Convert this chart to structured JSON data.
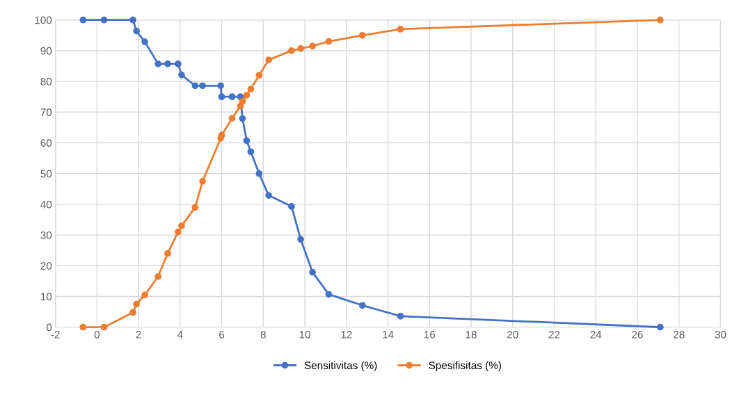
{
  "chart_data": {
    "type": "line",
    "x": [
      -0.67,
      0.34,
      1.73,
      1.9,
      2.3,
      2.94,
      3.4,
      3.9,
      4.07,
      4.72,
      5.08,
      5.95,
      6.0,
      6.5,
      6.9,
      7.0,
      7.2,
      7.4,
      7.8,
      8.26,
      9.36,
      9.8,
      10.37,
      11.15,
      12.77,
      14.6,
      27.1
    ],
    "series": [
      {
        "name": "Sensitivitas (%)",
        "color": "#4472c4",
        "values": [
          100,
          100,
          100,
          96.4,
          92.9,
          85.7,
          85.7,
          85.7,
          82.1,
          78.6,
          78.6,
          78.6,
          75,
          75,
          75,
          67.9,
          60.7,
          57.1,
          50,
          42.9,
          39.3,
          28.6,
          17.9,
          10.7,
          7.1,
          3.6,
          0
        ]
      },
      {
        "name": "Spesifisitas (%)",
        "color": "#ed7d31",
        "values": [
          0,
          0,
          4.8,
          7.5,
          10.5,
          16.5,
          24,
          31,
          33,
          39,
          47.5,
          61.5,
          62.5,
          68,
          72,
          73.5,
          75.5,
          77.5,
          82,
          87,
          90,
          90.7,
          91.5,
          93,
          95,
          97,
          100
        ]
      }
    ],
    "xlim": [
      -2,
      30
    ],
    "xticks": [
      -2,
      0,
      2,
      4,
      6,
      8,
      10,
      12,
      14,
      16,
      18,
      20,
      22,
      24,
      26,
      28,
      30
    ],
    "ylim": [
      0,
      100
    ],
    "yticks": [
      0,
      10,
      20,
      30,
      40,
      50,
      60,
      70,
      80,
      90,
      100
    ],
    "grid": true,
    "legend": "bottom",
    "marker": "circle",
    "line_style": "solid"
  }
}
